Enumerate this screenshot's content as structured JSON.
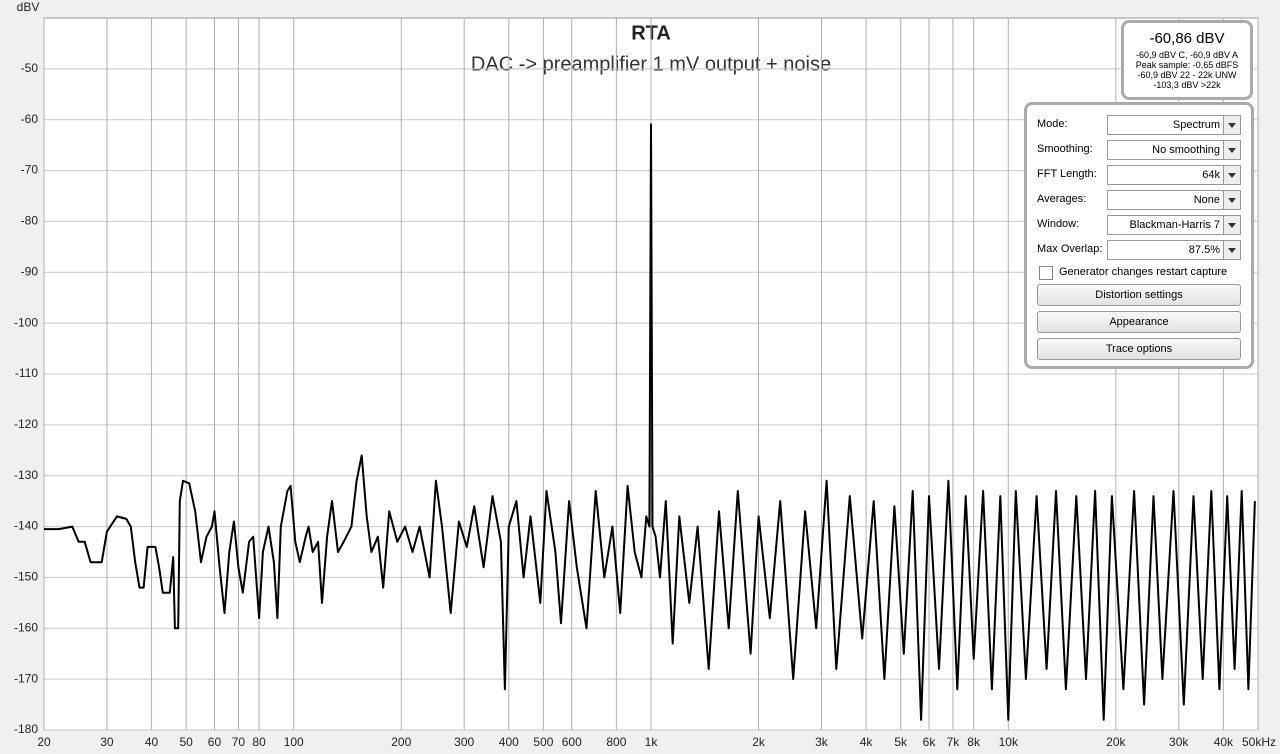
{
  "chart_data": {
    "type": "line",
    "title": "RTA",
    "subtitle": "DAC -> preamplifier 1 mV output + noise",
    "y_label": "dBV",
    "xscale": "log",
    "grid": true,
    "xlim": [
      20,
      50000
    ],
    "ylim": [
      -180,
      -40
    ],
    "xticks": [
      20,
      30,
      40,
      50,
      60,
      70,
      80,
      100,
      200,
      300,
      400,
      500,
      600,
      800,
      {
        "value": 1000,
        "label": "1k"
      },
      {
        "value": 2000,
        "label": "2k"
      },
      {
        "value": 3000,
        "label": "3k"
      },
      {
        "value": 4000,
        "label": "4k"
      },
      {
        "value": 5000,
        "label": "5k"
      },
      {
        "value": 6000,
        "label": "6k"
      },
      {
        "value": 7000,
        "label": "7k"
      },
      {
        "value": 8000,
        "label": "8k"
      },
      {
        "value": 10000,
        "label": "10k"
      },
      {
        "value": 20000,
        "label": "20k"
      },
      {
        "value": 30000,
        "label": "30k"
      },
      {
        "value": 40000,
        "label": "40k"
      },
      {
        "value": 50000,
        "label": "50kHz"
      }
    ],
    "yticks": [
      -50,
      -60,
      -70,
      -80,
      -90,
      -100,
      -110,
      -120,
      -130,
      -140,
      -150,
      -160,
      -170,
      -180
    ],
    "series": [
      {
        "color": "#000000",
        "x": [
          20,
          22,
          24,
          25,
          26,
          27,
          29,
          30,
          32,
          34,
          35,
          36,
          37,
          38,
          39,
          41,
          42,
          43,
          45,
          46,
          46.5,
          47.5,
          48,
          49,
          51,
          53,
          54,
          55,
          57,
          59,
          60,
          62,
          64,
          66,
          68,
          70,
          72,
          75,
          77,
          80,
          82,
          85,
          88,
          90,
          92,
          96,
          98,
          101,
          104,
          108,
          110,
          113,
          117,
          120,
          124,
          128,
          133,
          138,
          145,
          150,
          155,
          160,
          165,
          172,
          178,
          185,
          195,
          205,
          215,
          225,
          240,
          250,
          260,
          275,
          290,
          305,
          320,
          340,
          360,
          380,
          390,
          400,
          420,
          440,
          460,
          490,
          510,
          540,
          560,
          590,
          620,
          660,
          700,
          740,
          780,
          820,
          860,
          900,
          940,
          970,
          990,
          1000,
          1010,
          1030,
          1060,
          1100,
          1150,
          1200,
          1280,
          1350,
          1450,
          1550,
          1650,
          1750,
          1900,
          2000,
          2150,
          2300,
          2500,
          2700,
          2900,
          3100,
          3300,
          3600,
          3900,
          4200,
          4500,
          4800,
          5100,
          5400,
          5700,
          6000,
          6400,
          6800,
          7200,
          7600,
          8000,
          8500,
          9000,
          9500,
          10000,
          10500,
          11200,
          12000,
          12800,
          13600,
          14500,
          15500,
          16500,
          17500,
          18500,
          19500,
          21000,
          22500,
          24000,
          25500,
          27000,
          29000,
          31000,
          33000,
          35000,
          37000,
          39000,
          41000,
          43000,
          45000,
          47000,
          49000
        ],
        "values": [
          -140.5,
          -140.5,
          -140,
          -143,
          -143,
          -147,
          -147,
          -141,
          -138,
          -138.5,
          -140,
          -147,
          -152,
          -152,
          -144,
          -144,
          -148,
          -153,
          -153,
          -146,
          -160,
          -160,
          -135,
          -131,
          -131.5,
          -137,
          -142,
          -147,
          -142,
          -140,
          -137,
          -148,
          -157,
          -145,
          -139,
          -148,
          -153,
          -143,
          -142,
          -158,
          -145,
          -140,
          -147,
          -158,
          -140,
          -133,
          -132,
          -143,
          -147,
          -142,
          -140,
          -145,
          -143,
          -155,
          -142,
          -135,
          -145,
          -143,
          -140,
          -131,
          -126,
          -138,
          -145,
          -142,
          -152,
          -137,
          -143,
          -140,
          -145,
          -140,
          -150,
          -131,
          -140,
          -157,
          -139,
          -144,
          -136,
          -148,
          -134,
          -143,
          -172,
          -140,
          -135,
          -150,
          -138,
          -155,
          -133,
          -145,
          -159,
          -135,
          -148,
          -160,
          -133,
          -150,
          -140,
          -157,
          -132,
          -145,
          -150,
          -138,
          -140,
          -60.9,
          -140,
          -142,
          -150,
          -135,
          -163,
          -138,
          -155,
          -140,
          -168,
          -137,
          -160,
          -133,
          -165,
          -138,
          -158,
          -135,
          -170,
          -137,
          -160,
          -131,
          -168,
          -134,
          -162,
          -135,
          -170,
          -136,
          -165,
          -133,
          -178,
          -134,
          -168,
          -131,
          -172,
          -134,
          -166,
          -133,
          -172,
          -134,
          -178,
          -133,
          -170,
          -134,
          -168,
          -133,
          -172,
          -134,
          -170,
          -133,
          -178,
          -134,
          -172,
          -133,
          -175,
          -134,
          -170,
          -133,
          -175,
          -134,
          -170,
          -133,
          -172,
          -134,
          -168,
          -133,
          -172,
          -135
        ]
      }
    ]
  },
  "readout": {
    "main": "-60,86 dBV",
    "lines": [
      "-60,9 dBV C, -60,9 dBV A",
      "Peak sample: -0,65 dBFS",
      "-60,9 dBV 22 - 22k UNW",
      "-103,3 dBV >22k"
    ]
  },
  "settings": {
    "rows": [
      {
        "label": "Mode:",
        "value": "Spectrum"
      },
      {
        "label": "Smoothing:",
        "value": "No  smoothing"
      },
      {
        "label": "FFT Length:",
        "value": "64k"
      },
      {
        "label": "Averages:",
        "value": "None"
      },
      {
        "label": "Window:",
        "value": "Blackman-Harris 7"
      },
      {
        "label": "Max Overlap:",
        "value": "87.5%"
      }
    ],
    "checkbox": "Generator changes restart capture",
    "buttons": [
      "Distortion settings",
      "Appearance",
      "Trace options"
    ]
  }
}
